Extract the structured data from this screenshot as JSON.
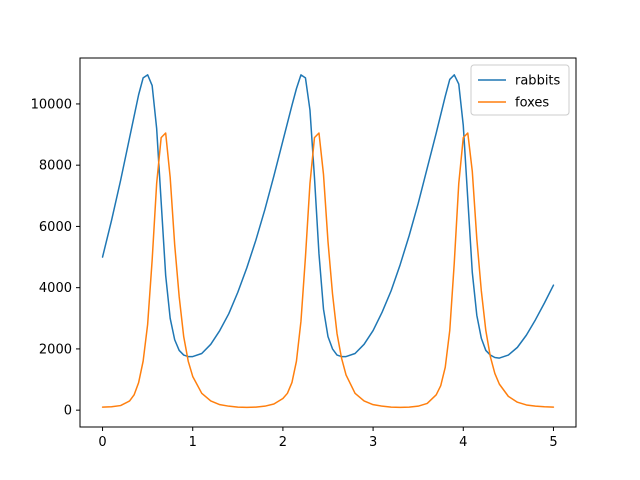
{
  "chart_data": {
    "type": "line",
    "title": "",
    "xlabel": "",
    "ylabel": "",
    "xlim": [
      -0.25,
      5.25
    ],
    "ylim": [
      -550,
      11500
    ],
    "grid": false,
    "legend_position": "top-right",
    "x_ticks": [
      0,
      1,
      2,
      3,
      4,
      5
    ],
    "x_tick_labels": [
      "0",
      "1",
      "2",
      "3",
      "4",
      "5"
    ],
    "y_ticks": [
      0,
      2000,
      4000,
      6000,
      8000,
      10000
    ],
    "y_tick_labels": [
      "0",
      "2000",
      "4000",
      "6000",
      "8000",
      "10000"
    ],
    "legend": [
      "rabbits",
      "foxes"
    ],
    "colors": {
      "rabbits": "#1f77b4",
      "foxes": "#ff7f0e"
    },
    "series": [
      {
        "name": "rabbits",
        "x": [
          0,
          0.1,
          0.2,
          0.3,
          0.4,
          0.45,
          0.5,
          0.55,
          0.6,
          0.65,
          0.7,
          0.75,
          0.8,
          0.85,
          0.9,
          0.95,
          1.0,
          1.1,
          1.2,
          1.3,
          1.4,
          1.5,
          1.6,
          1.7,
          1.8,
          1.9,
          2.0,
          2.1,
          2.15,
          2.2,
          2.25,
          2.3,
          2.35,
          2.4,
          2.45,
          2.5,
          2.55,
          2.6,
          2.65,
          2.7,
          2.8,
          2.9,
          3.0,
          3.1,
          3.2,
          3.3,
          3.4,
          3.5,
          3.6,
          3.7,
          3.8,
          3.85,
          3.9,
          3.95,
          4.0,
          4.05,
          4.1,
          4.15,
          4.2,
          4.25,
          4.3,
          4.35,
          4.4,
          4.5,
          4.6,
          4.7,
          4.8,
          4.9,
          5.0
        ],
        "y": [
          5000,
          6200,
          7500,
          8900,
          10300,
          10850,
          10950,
          10600,
          9200,
          6800,
          4400,
          3000,
          2300,
          1950,
          1800,
          1750,
          1750,
          1850,
          2150,
          2600,
          3150,
          3850,
          4650,
          5550,
          6550,
          7650,
          8800,
          9950,
          10500,
          10950,
          10850,
          9800,
          7600,
          5100,
          3300,
          2400,
          2000,
          1800,
          1750,
          1750,
          1850,
          2150,
          2600,
          3200,
          3900,
          4750,
          5700,
          6750,
          7900,
          9050,
          10250,
          10800,
          10950,
          10650,
          9300,
          6900,
          4500,
          3100,
          2350,
          1950,
          1800,
          1720,
          1700,
          1800,
          2050,
          2450,
          2950,
          3500,
          4080
        ]
      },
      {
        "name": "foxes",
        "x": [
          0,
          0.1,
          0.2,
          0.3,
          0.35,
          0.4,
          0.45,
          0.5,
          0.55,
          0.6,
          0.65,
          0.7,
          0.75,
          0.8,
          0.85,
          0.9,
          0.95,
          1.0,
          1.1,
          1.2,
          1.3,
          1.4,
          1.5,
          1.6,
          1.7,
          1.8,
          1.9,
          2.0,
          2.05,
          2.1,
          2.15,
          2.2,
          2.25,
          2.3,
          2.35,
          2.4,
          2.45,
          2.5,
          2.55,
          2.6,
          2.65,
          2.7,
          2.8,
          2.9,
          3.0,
          3.1,
          3.2,
          3.3,
          3.4,
          3.5,
          3.6,
          3.7,
          3.75,
          3.8,
          3.85,
          3.9,
          3.95,
          4.0,
          4.05,
          4.1,
          4.15,
          4.2,
          4.25,
          4.3,
          4.35,
          4.4,
          4.5,
          4.6,
          4.7,
          4.8,
          4.9,
          5.0
        ],
        "y": [
          100,
          110,
          150,
          300,
          500,
          900,
          1600,
          2800,
          4900,
          7400,
          8900,
          9050,
          7600,
          5400,
          3700,
          2400,
          1600,
          1100,
          550,
          300,
          180,
          130,
          100,
          90,
          100,
          130,
          200,
          380,
          550,
          900,
          1600,
          2900,
          5000,
          7400,
          8900,
          9050,
          7700,
          5500,
          3800,
          2500,
          1700,
          1150,
          550,
          300,
          180,
          130,
          100,
          90,
          100,
          130,
          220,
          500,
          800,
          1400,
          2600,
          4800,
          7400,
          8900,
          9050,
          7800,
          5600,
          3900,
          2600,
          1750,
          1200,
          850,
          450,
          260,
          170,
          130,
          110,
          100
        ]
      }
    ]
  }
}
